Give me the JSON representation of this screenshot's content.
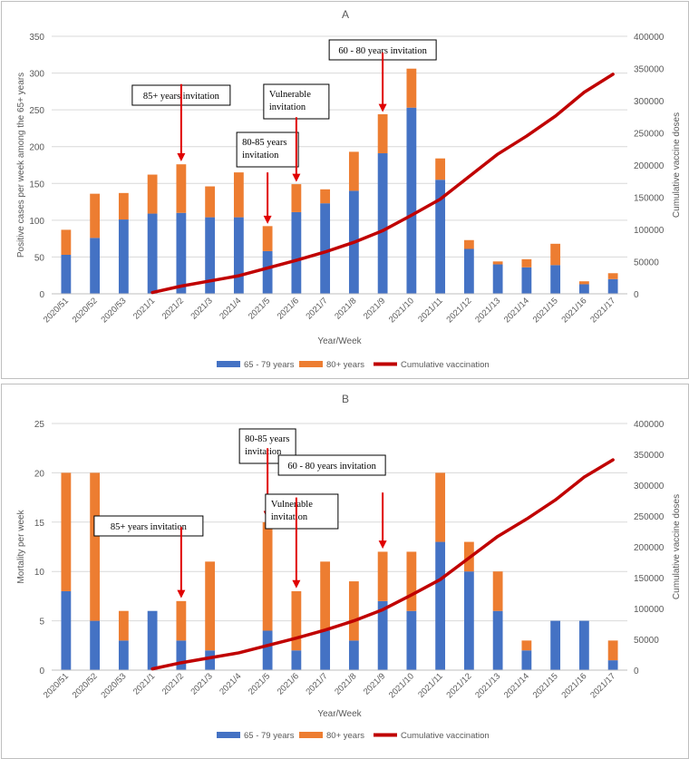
{
  "colors": {
    "young": "#4472C4",
    "old": "#ED7D31",
    "vacc": "#C00000",
    "grid": "#d9d9d9",
    "text": "#595959",
    "arrow": "#E00000"
  },
  "chart_data": [
    {
      "panel_label": "A",
      "type": "bar",
      "stacked": true,
      "categories": [
        "2020/51",
        "2020/52",
        "2020/53",
        "2021/1",
        "2021/2",
        "2021/3",
        "2021/4",
        "2021/5",
        "2021/6",
        "2021/7",
        "2021/8",
        "2021/9",
        "2021/10",
        "2021/11",
        "2021/12",
        "2021/13",
        "2021/14",
        "2021/15",
        "2021/16",
        "2021/17"
      ],
      "series": [
        {
          "name": "65 - 79 years",
          "values": [
            53,
            76,
            101,
            109,
            110,
            104,
            104,
            58,
            111,
            123,
            140,
            191,
            253,
            155,
            61,
            40,
            36,
            39,
            13,
            20
          ]
        },
        {
          "name": "80+ years",
          "values": [
            34,
            60,
            36,
            53,
            66,
            42,
            61,
            34,
            38,
            19,
            53,
            53,
            53,
            29,
            12,
            4,
            11,
            29,
            4,
            8
          ]
        }
      ],
      "line_series": {
        "name": "Cumulative vaccination",
        "axis": "right",
        "x": [
          "2021/1",
          "2021/2",
          "2021/3",
          "2021/4",
          "2021/5",
          "2021/6",
          "2021/7",
          "2021/8",
          "2021/9",
          "2021/10",
          "2021/11",
          "2021/12",
          "2021/13",
          "2021/14",
          "2021/15",
          "2021/16",
          "2021/17"
        ],
        "values": [
          2000,
          12000,
          20000,
          28000,
          40000,
          52000,
          65000,
          80000,
          98000,
          122000,
          147000,
          182000,
          217000,
          245000,
          276000,
          313000,
          341000
        ]
      },
      "ylabel": "Positive cases per week among the 65+ years",
      "y2label": "Cumulative vaccine doses",
      "xlabel": "Year/Week",
      "ylim": [
        0,
        350
      ],
      "yticks": [
        "0",
        "50",
        "100",
        "150",
        "200",
        "250",
        "300",
        "350"
      ],
      "y2lim": [
        0,
        400000
      ],
      "y2ticks": [
        "0",
        "50000",
        "100000",
        "150000",
        "200000",
        "250000",
        "300000",
        "350000",
        "400000"
      ],
      "legend": [
        "65 - 79 years",
        "80+ years",
        "Cumulative vaccination"
      ],
      "annotations": [
        {
          "lines": [
            "85+ years invitation"
          ],
          "category": "2021/2",
          "arrow_from": 285,
          "arrow_to": 180
        },
        {
          "lines": [
            "80-85 years",
            "invitation"
          ],
          "category": "2021/5",
          "arrow_from": 165,
          "arrow_to": 95
        },
        {
          "lines": [
            "Vulnerable",
            "invitation"
          ],
          "category": "2021/6",
          "arrow_from": 240,
          "arrow_to": 152
        },
        {
          "lines": [
            "60 - 80 years invitation"
          ],
          "category": "2021/9",
          "arrow_from": 328,
          "arrow_to": 247
        }
      ]
    },
    {
      "panel_label": "B",
      "type": "bar",
      "stacked": true,
      "categories": [
        "2020/51",
        "2020/52",
        "2020/53",
        "2021/1",
        "2021/2",
        "2021/3",
        "2021/4",
        "2021/5",
        "2021/6",
        "2021/7",
        "2021/8",
        "2021/9",
        "2021/10",
        "2021/11",
        "2021/12",
        "2021/13",
        "2021/14",
        "2021/15",
        "2021/16",
        "2021/17"
      ],
      "series": [
        {
          "name": "65 - 79 years",
          "values": [
            8,
            5,
            3,
            6,
            3,
            2,
            0,
            4,
            2,
            4,
            3,
            7,
            6,
            13,
            10,
            6,
            2,
            5,
            5,
            1
          ]
        },
        {
          "name": "80+ years",
          "values": [
            12,
            15,
            3,
            0,
            4,
            9,
            0,
            11,
            6,
            7,
            6,
            5,
            6,
            7,
            3,
            4,
            1,
            0,
            0,
            2
          ]
        }
      ],
      "line_series": {
        "name": "Cumulative vaccination",
        "axis": "right",
        "x": [
          "2021/1",
          "2021/2",
          "2021/3",
          "2021/4",
          "2021/5",
          "2021/6",
          "2021/7",
          "2021/8",
          "2021/9",
          "2021/10",
          "2021/11",
          "2021/12",
          "2021/13",
          "2021/14",
          "2021/15",
          "2021/16",
          "2021/17"
        ],
        "values": [
          2000,
          12000,
          20000,
          28000,
          40000,
          52000,
          65000,
          80000,
          98000,
          122000,
          147000,
          182000,
          217000,
          245000,
          276000,
          313000,
          341000
        ]
      },
      "ylabel": "Mortality per week",
      "y2label": "Cumulative vaccine doses",
      "xlabel": "Year/Week",
      "ylim": [
        0,
        25
      ],
      "yticks": [
        "0",
        "5",
        "10",
        "15",
        "20",
        "25"
      ],
      "y2lim": [
        0,
        400000
      ],
      "y2ticks": [
        "0",
        "50000",
        "100000",
        "150000",
        "200000",
        "250000",
        "300000",
        "350000",
        "400000"
      ],
      "legend": [
        "65 - 79 years",
        "80+ years",
        "Cumulative vaccination"
      ],
      "annotations": [
        {
          "lines": [
            "85+ years invitation"
          ],
          "category": "2021/2",
          "arrow_from": 14.5,
          "arrow_to": 7.3
        },
        {
          "lines": [
            "80-85 years",
            "invitation"
          ],
          "category": "2021/5",
          "arrow_from": 22.5,
          "arrow_to": 15.3
        },
        {
          "lines": [
            "Vulnerable",
            "invitation"
          ],
          "category": "2021/6",
          "arrow_from": 17.5,
          "arrow_to": 8.3
        },
        {
          "lines": [
            "60 - 80 years invitation"
          ],
          "category": "2021/9",
          "arrow_from": 18,
          "arrow_to": 12.3
        }
      ]
    }
  ]
}
